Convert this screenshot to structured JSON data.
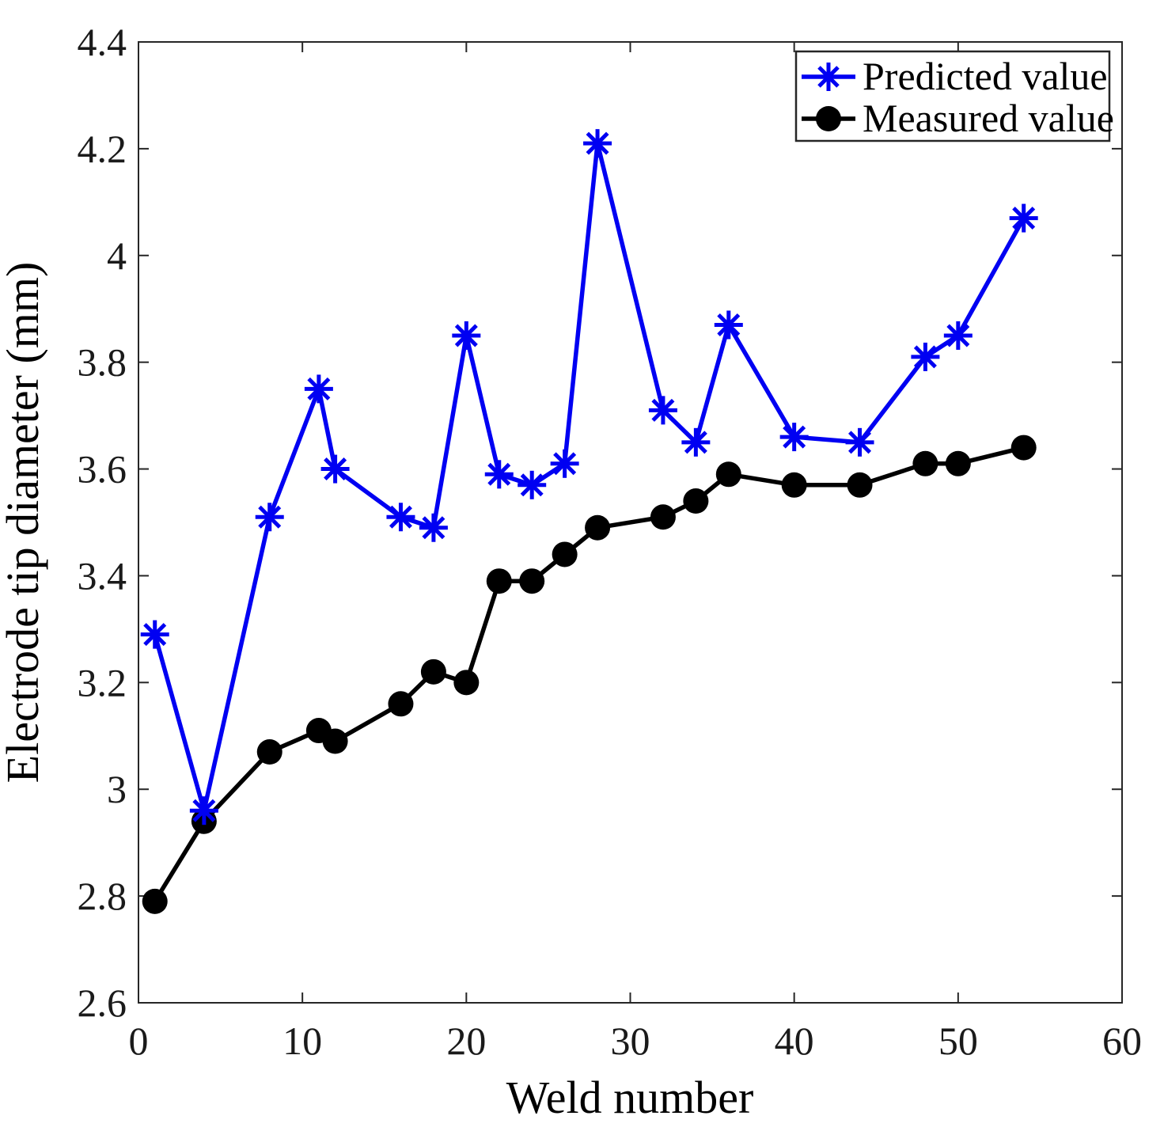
{
  "figure": {
    "background": "#ffffff",
    "axis_color": "#262626",
    "text_color": "#1a1a1a"
  },
  "chart_data": {
    "type": "line",
    "title": "",
    "xlabel": "Weld number",
    "ylabel": "Electrode tip diameter (mm)",
    "xlim": [
      0,
      60
    ],
    "ylim": [
      2.6,
      4.4
    ],
    "xticks": [
      0,
      10,
      20,
      30,
      40,
      50,
      60
    ],
    "yticks": [
      2.6,
      2.8,
      3.0,
      3.2,
      3.4,
      3.6,
      3.8,
      4.0,
      4.2,
      4.4
    ],
    "ytick_labels": [
      "2.6",
      "2.8",
      "3",
      "3.2",
      "3.4",
      "3.6",
      "3.8",
      "4",
      "4.2",
      "4.4"
    ],
    "grid": false,
    "box": true,
    "tick_direction": "in",
    "legend_position": "top-right",
    "x": [
      1,
      4,
      8,
      11,
      12,
      16,
      18,
      20,
      22,
      24,
      26,
      28,
      32,
      34,
      36,
      40,
      44,
      48,
      50,
      54
    ],
    "series": [
      {
        "name": "Predicted value",
        "color": "#0000f2",
        "marker": "asterisk",
        "line_width": 5.5,
        "values": [
          3.29,
          2.96,
          3.51,
          3.75,
          3.6,
          3.51,
          3.49,
          3.85,
          3.59,
          3.57,
          3.61,
          4.21,
          3.71,
          3.65,
          3.87,
          3.66,
          3.65,
          3.81,
          3.85,
          4.07
        ]
      },
      {
        "name": "Measured value",
        "color": "#000000",
        "marker": "circle",
        "line_width": 5.5,
        "values": [
          2.79,
          2.94,
          3.07,
          3.11,
          3.09,
          3.16,
          3.22,
          3.2,
          3.39,
          3.39,
          3.44,
          3.49,
          3.51,
          3.54,
          3.59,
          3.57,
          3.57,
          3.61,
          3.61,
          3.64
        ]
      }
    ]
  }
}
